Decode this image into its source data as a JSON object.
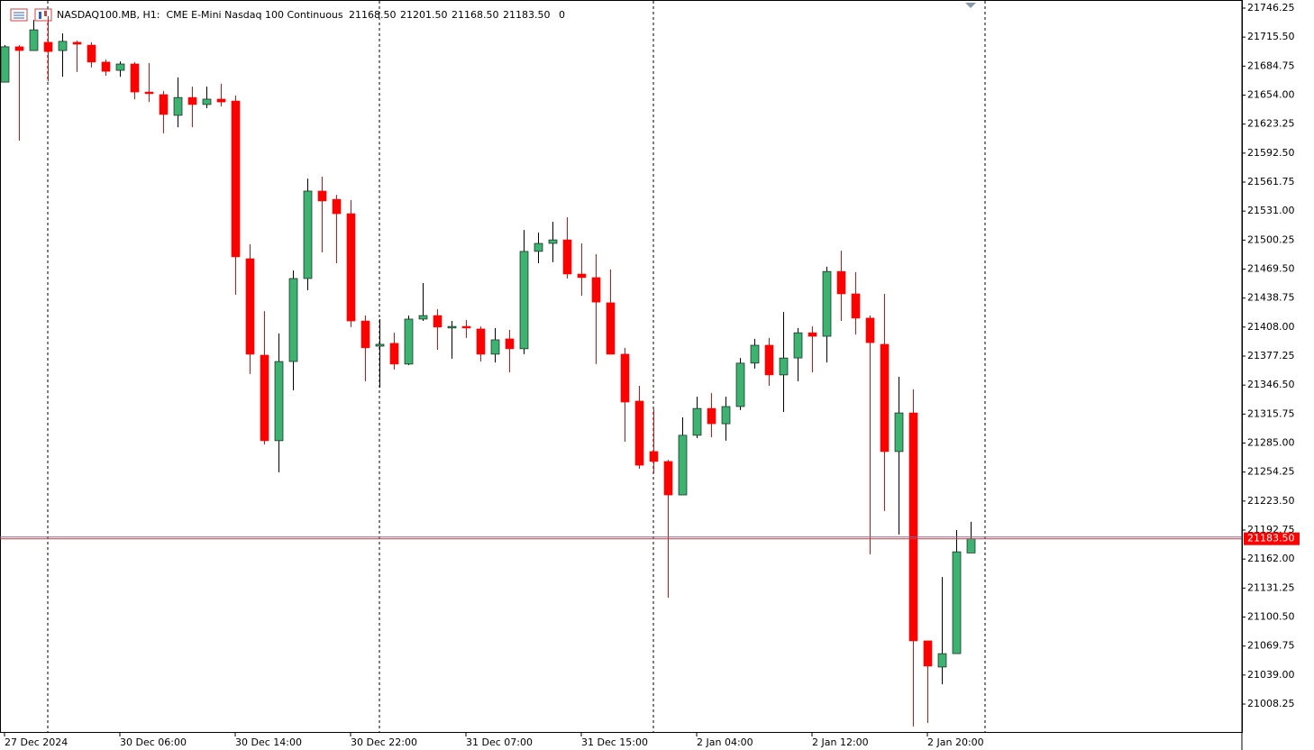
{
  "chart_data": {
    "type": "candlestick",
    "title": "NASDAQ100.MB, H1:  CME E-Mini Nasdaq 100 Continuous",
    "header_ohlc": [
      {
        "value": 21168.5,
        "label": "21168.50"
      },
      {
        "value": 21201.5,
        "label": "21201.50"
      },
      {
        "value": 21168.5,
        "label": "21168.50"
      },
      {
        "value": 21183.5,
        "label": "21183.50"
      }
    ],
    "header_volume": 0,
    "categories": [
      "27 Dec 2024",
      null,
      null,
      null,
      null,
      null,
      null,
      null,
      "30 Dec 06:00",
      null,
      null,
      null,
      null,
      null,
      null,
      null,
      "30 Dec 14:00",
      null,
      null,
      null,
      null,
      null,
      null,
      null,
      "30 Dec 22:00",
      null,
      null,
      null,
      null,
      null,
      null,
      null,
      "31 Dec 07:00",
      null,
      null,
      null,
      null,
      null,
      null,
      null,
      "31 Dec 15:00",
      null,
      null,
      null,
      null,
      null,
      null,
      null,
      "2 Jan 04:00",
      null,
      null,
      null,
      null,
      null,
      null,
      null,
      "2 Jan 12:00",
      null,
      null,
      null,
      null,
      null,
      null,
      null,
      "2 Jan 20:00",
      null,
      null,
      null
    ],
    "open": [
      21667.75,
      21705.25,
      21701.25,
      21710,
      21701.25,
      21710,
      21707,
      21689,
      21680.25,
      21687,
      21657.25,
      21654.5,
      21632.5,
      21651.5,
      21644,
      21649.75,
      21647.75,
      21480.5,
      21378.25,
      21287.5,
      21371.5,
      21459.5,
      21552.25,
      21543.5,
      21528.25,
      21414.5,
      21387.75,
      21390.75,
      21368.75,
      21416.5,
      21420.25,
      21407,
      21408.75,
      21406,
      21379.25,
      21395.5,
      21385,
      21488.25,
      21496.75,
      21500.5,
      21464.25,
      21460.5,
      21433.75,
      21379.25,
      21329.5,
      21276,
      21265.5,
      21230,
      21293.25,
      21321.75,
      21305.5,
      21323.75,
      21369.75,
      21388.75,
      21357.25,
      21375.25,
      21402,
      21398.25,
      21467,
      21443.25,
      21417.5,
      21389.75,
      21276,
      21317,
      21075.25,
      21047.5,
      21061.75,
      21168.5
    ],
    "high": [
      21707,
      21707,
      21733.75,
      21737.75,
      21719.5,
      21711.75,
      21710,
      21691.75,
      21689.75,
      21689,
      21688,
      21658.25,
      21672.75,
      21663,
      21663,
      21666,
      21653.5,
      21495.75,
      21425,
      21401.25,
      21468,
      21565.5,
      21567.5,
      21548.25,
      21542.75,
      21420.25,
      21416.5,
      21402,
      21420.25,
      21454.75,
      21427,
      21414.5,
      21415.5,
      21408.75,
      21407,
      21405,
      21511,
      21508.25,
      21519.75,
      21524.5,
      21496.75,
      21485.25,
      21469,
      21386,
      21345.75,
      21321,
      21267.25,
      21312.25,
      21334.25,
      21338,
      21334.25,
      21375.25,
      21395.5,
      21396.5,
      21424,
      21407,
      21408.75,
      21472,
      21489,
      21466.25,
      21420.25,
      21443.25,
      21355.25,
      21342,
      21075.25,
      21143,
      21192.75,
      21201.5
    ],
    "low": [
      21667.75,
      21605.75,
      21701.25,
      21668.75,
      21673.5,
      21678.5,
      21683.25,
      21674.5,
      21673.5,
      21649.75,
      21646.75,
      21613.5,
      21620,
      21620,
      21640,
      21642,
      21442.25,
      21358.25,
      21283.5,
      21254,
      21341,
      21447,
      21487.25,
      21475.75,
      21408,
      21350.5,
      21343.75,
      21363,
      21367.75,
      21414.5,
      21384,
      21374.5,
      21396.5,
      21371.5,
      21370.5,
      21360,
      21379.25,
      21475.75,
      21476.75,
      21459.5,
      21441.25,
      21368.75,
      21379.25,
      21286.5,
      21257.75,
      21253,
      21121,
      21230,
      21290.25,
      21291.25,
      21287.5,
      21320,
      21364,
      21345.75,
      21318,
      21350.5,
      21360,
      21370.5,
      21414.5,
      21400.25,
      21167,
      21213,
      21188,
      20984.5,
      20988.25,
      21029.25,
      21061.75,
      21168.5
    ],
    "close": [
      21705.25,
      21701.25,
      21723.25,
      21700.25,
      21711,
      21708,
      21689,
      21679.25,
      21687,
      21657.25,
      21655.5,
      21633.5,
      21651.5,
      21644,
      21649.75,
      21646.75,
      21482.5,
      21379.25,
      21287.5,
      21371.5,
      21459.5,
      21552.25,
      21541.75,
      21528.25,
      21414.5,
      21386,
      21389.75,
      21368.75,
      21416.5,
      21420.25,
      21408,
      21408.75,
      21407,
      21379.25,
      21394.5,
      21385,
      21488.25,
      21496.75,
      21500.5,
      21464.25,
      21460.5,
      21434.5,
      21379.25,
      21328.5,
      21261.5,
      21265.5,
      21230,
      21293.25,
      21321.75,
      21305.5,
      21323.75,
      21369.75,
      21388.75,
      21357.25,
      21375.25,
      21402,
      21398.25,
      21467,
      21443.25,
      21417.5,
      21391.5,
      21276,
      21317,
      21075.25,
      21048.5,
      21061.75,
      21169.75,
      21183.5
    ],
    "up_color": "#3cb371",
    "down_color": "#ff0000",
    "last_price": {
      "value": 21183.5,
      "label": "21183.50"
    },
    "ylim": [
      20978.65,
      21754.85
    ],
    "yticks": [
      21746.25,
      {
        "value": 21715.5,
        "label": "21715.50"
      },
      21684.75,
      {
        "value": 21654,
        "label": "21654.00"
      },
      21623.25,
      {
        "value": 21592.5,
        "label": "21592.50"
      },
      21561.75,
      {
        "value": 21531,
        "label": "21531.00"
      },
      21500.25,
      {
        "value": 21469.5,
        "label": "21469.50"
      },
      21438.75,
      {
        "value": 21408,
        "label": "21408.00"
      },
      21377.25,
      {
        "value": 21346.5,
        "label": "21346.50"
      },
      21315.75,
      {
        "value": 21285,
        "label": "21285.00"
      },
      21254.25,
      {
        "value": 21223.5,
        "label": "21223.50"
      },
      21192.75,
      {
        "value": 21162,
        "label": "21162.00"
      },
      21131.25,
      {
        "value": 21100.5,
        "label": "21100.50"
      },
      21069.75,
      {
        "value": 21039,
        "label": "21039.00"
      },
      21008.25
    ],
    "grid": false
  }
}
